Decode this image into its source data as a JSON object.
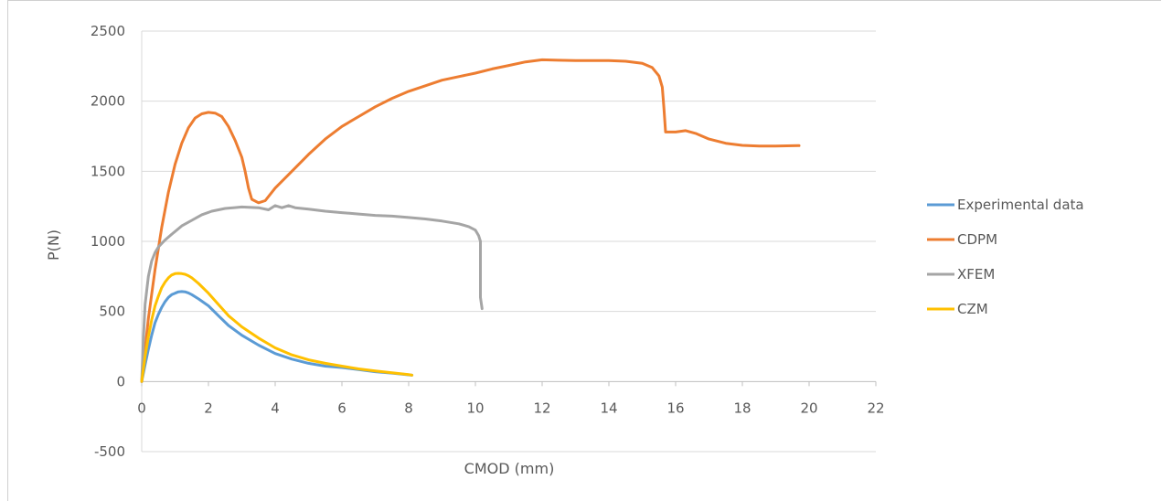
{
  "chart_data": {
    "type": "line",
    "title": "",
    "xlabel": "CMOD (mm)",
    "ylabel": "P(N)",
    "xlim": [
      0,
      22
    ],
    "ylim": [
      -500,
      2500
    ],
    "xticks": [
      0,
      2,
      4,
      6,
      8,
      10,
      12,
      14,
      16,
      18,
      20,
      22
    ],
    "yticks": [
      -500,
      0,
      500,
      1000,
      1500,
      2000,
      2500
    ],
    "grid": "horizontal",
    "legend_position": "right",
    "series": [
      {
        "name": "Experimental data",
        "color": "#5B9BD5",
        "x": [
          0,
          0.1,
          0.2,
          0.3,
          0.4,
          0.5,
          0.6,
          0.7,
          0.8,
          0.9,
          1.0,
          1.1,
          1.2,
          1.3,
          1.4,
          1.5,
          1.7,
          2.0,
          2.3,
          2.6,
          3.0,
          3.5,
          4.0,
          4.5,
          5.0,
          5.5,
          6.0,
          6.5,
          7.0,
          7.5,
          8.0,
          8.1
        ],
        "y": [
          0,
          120,
          230,
          330,
          420,
          480,
          530,
          570,
          600,
          620,
          630,
          640,
          642,
          640,
          632,
          620,
          590,
          540,
          470,
          400,
          330,
          260,
          200,
          160,
          130,
          110,
          100,
          85,
          70,
          60,
          48,
          45
        ]
      },
      {
        "name": "CDPM",
        "color": "#ED7D31",
        "x": [
          0,
          0.2,
          0.4,
          0.6,
          0.8,
          1.0,
          1.2,
          1.4,
          1.6,
          1.8,
          2.0,
          2.2,
          2.4,
          2.6,
          2.8,
          3.0,
          3.1,
          3.2,
          3.3,
          3.5,
          3.7,
          4.0,
          4.5,
          5.0,
          5.5,
          6.0,
          6.5,
          7.0,
          7.5,
          8.0,
          8.5,
          9.0,
          9.5,
          10.0,
          10.5,
          11.0,
          11.5,
          12.0,
          12.5,
          13.0,
          13.5,
          14.0,
          14.5,
          15.0,
          15.3,
          15.5,
          15.6,
          15.65,
          15.7,
          16.0,
          16.3,
          16.6,
          17.0,
          17.5,
          18.0,
          18.5,
          19.0,
          19.5,
          19.7
        ],
        "y": [
          0,
          450,
          800,
          1100,
          1350,
          1550,
          1700,
          1810,
          1880,
          1910,
          1920,
          1915,
          1890,
          1820,
          1720,
          1600,
          1500,
          1380,
          1300,
          1275,
          1290,
          1380,
          1500,
          1620,
          1730,
          1820,
          1890,
          1960,
          2020,
          2070,
          2110,
          2150,
          2175,
          2200,
          2230,
          2255,
          2280,
          2295,
          2292,
          2290,
          2290,
          2290,
          2285,
          2270,
          2240,
          2180,
          2100,
          1950,
          1780,
          1780,
          1790,
          1770,
          1730,
          1700,
          1685,
          1680,
          1680,
          1682,
          1683
        ]
      },
      {
        "name": "XFEM",
        "color": "#A5A5A5",
        "x": [
          0,
          0.05,
          0.1,
          0.2,
          0.3,
          0.4,
          0.5,
          0.7,
          0.9,
          1.2,
          1.5,
          1.8,
          2.1,
          2.5,
          3.0,
          3.5,
          3.8,
          4.0,
          4.2,
          4.4,
          4.6,
          5.0,
          5.5,
          6.0,
          6.5,
          7.0,
          7.5,
          8.0,
          8.5,
          9.0,
          9.5,
          9.8,
          10.0,
          10.1,
          10.15,
          10.15,
          10.2
        ],
        "y": [
          0,
          300,
          550,
          750,
          860,
          920,
          960,
          1010,
          1050,
          1110,
          1150,
          1190,
          1215,
          1235,
          1245,
          1240,
          1225,
          1255,
          1240,
          1255,
          1240,
          1230,
          1215,
          1205,
          1195,
          1185,
          1180,
          1170,
          1160,
          1145,
          1125,
          1105,
          1080,
          1040,
          1000,
          600,
          520
        ]
      },
      {
        "name": "CZM",
        "color": "#FFC000",
        "x": [
          0,
          0.1,
          0.2,
          0.3,
          0.4,
          0.5,
          0.6,
          0.7,
          0.8,
          0.9,
          1.0,
          1.1,
          1.2,
          1.3,
          1.4,
          1.5,
          1.7,
          2.0,
          2.3,
          2.6,
          3.0,
          3.5,
          4.0,
          4.5,
          5.0,
          5.5,
          6.0,
          6.5,
          7.0,
          7.5,
          8.0,
          8.1
        ],
        "y": [
          0,
          180,
          320,
          440,
          540,
          610,
          670,
          710,
          740,
          760,
          770,
          772,
          770,
          765,
          755,
          740,
          700,
          630,
          550,
          470,
          390,
          310,
          240,
          190,
          155,
          130,
          110,
          90,
          75,
          62,
          50,
          45
        ]
      }
    ]
  }
}
